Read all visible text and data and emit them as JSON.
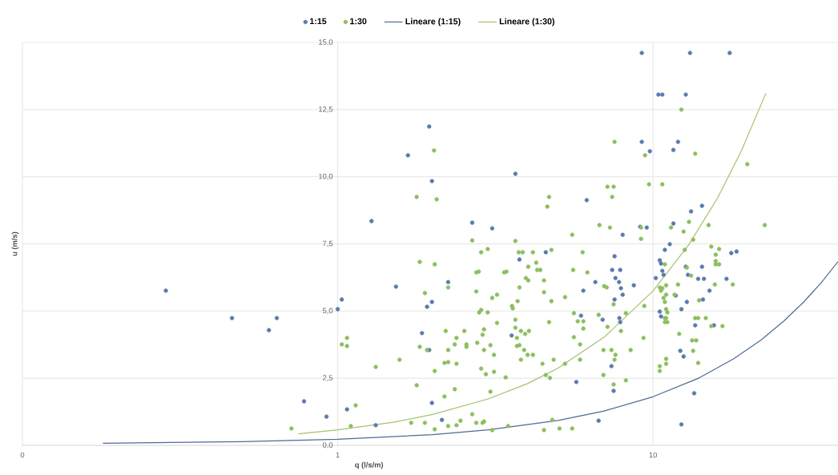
{
  "chart_data": {
    "type": "scatter",
    "xlabel": "q (l/s/m)",
    "ylabel": "u (m/s)",
    "log": "x",
    "grid": true,
    "legend": "top",
    "xlim": [
      0.1,
      38.6
    ],
    "xticks": [
      {
        "value": 0.1,
        "label": "0"
      },
      1,
      10
    ],
    "ylim": [
      0,
      15
    ],
    "yticks": [
      {
        "value": 0,
        "label": "0,0"
      },
      {
        "value": 2.5,
        "label": "2,5"
      },
      {
        "value": 5,
        "label": "5,0"
      },
      {
        "value": 7.5,
        "label": "7,5"
      },
      {
        "value": 10,
        "label": "10,0"
      },
      {
        "value": 12.5,
        "label": "12,5"
      },
      {
        "value": 15,
        "label": "15,0"
      }
    ],
    "series": [
      {
        "name": "1:15",
        "marker": "circle",
        "color": "#5a7bb0",
        "x": [
          0.285,
          0.462,
          0.605,
          0.641,
          0.782,
          0.921,
          1.0,
          1.03,
          1.07,
          1.28,
          1.32,
          1.53,
          1.67,
          1.95,
          1.99,
          1.92,
          1.99,
          1.85,
          1.95,
          1.99,
          2.24,
          2.14,
          2.67,
          3.09,
          3.56,
          3.66,
          3.77,
          4.57,
          6.16,
          6.01,
          5.71,
          5.91,
          6.56,
          6.72,
          6.92,
          7.55,
          7.42,
          7.87,
          7.6,
          7.8,
          7.91,
          8.01,
          7.55,
          7.82,
          7.87,
          8.01,
          8.69,
          7.38,
          7.5,
          9.21,
          9.77,
          9.1,
          9.55,
          10.6,
          10.2,
          10.6,
          10.9,
          11.3,
          10.8,
          9.21,
          13.1,
          17.5,
          10.4,
          10.7,
          12.7,
          11.6,
          12.0,
          14.3,
          13.2,
          11.6,
          10.5,
          10.7,
          12.7,
          12.9,
          14.3,
          13.9,
          14.5,
          17.1,
          17.7,
          18.4,
          15.1,
          14.4,
          12.8,
          11.8,
          12.3,
          10.5,
          13.6,
          15.6,
          12.2,
          12.5,
          13.5,
          12.3
        ],
        "values": [
          5.76,
          4.74,
          4.29,
          4.74,
          1.64,
          1.07,
          5.07,
          5.43,
          1.34,
          8.35,
          0.75,
          5.91,
          10.8,
          11.87,
          9.84,
          5.16,
          5.34,
          4.18,
          3.55,
          1.58,
          6.08,
          0.95,
          8.29,
          8.08,
          4.09,
          10.11,
          6.92,
          7.19,
          9.13,
          5.76,
          2.36,
          4.83,
          6.08,
          0.92,
          4.68,
          7.04,
          6.53,
          6.53,
          6.23,
          6.08,
          5.85,
          5.61,
          5.43,
          4.74,
          4.59,
          7.84,
          5.96,
          2.95,
          2.03,
          11.3,
          10.95,
          8.14,
          8.11,
          4.8,
          6.23,
          6.77,
          7.28,
          7.49,
          6.35,
          14.61,
          14.61,
          14.61,
          13.06,
          13.06,
          13.06,
          11.0,
          11.3,
          8.92,
          8.71,
          8.26,
          6.89,
          6.5,
          6.65,
          6.35,
          6.65,
          6.2,
          6.2,
          6.2,
          7.16,
          7.22,
          5.76,
          5.43,
          5.34,
          5.58,
          5.07,
          4.98,
          4.47,
          4.47,
          3.52,
          3.31,
          1.94,
          0.78
        ]
      },
      {
        "name": "1:30",
        "marker": "circle",
        "color": "#8cbf5f",
        "x": [
          0.713,
          1.03,
          1.07,
          1.07,
          1.1,
          1.14,
          1.32,
          1.57,
          1.71,
          1.78,
          1.78,
          1.82,
          1.82,
          1.89,
          1.89,
          1.92,
          2.02,
          2.03,
          2.03,
          2.03,
          2.06,
          2.2,
          2.24,
          2.24,
          2.18,
          2.18,
          2.24,
          2.24,
          2.35,
          2.38,
          2.38,
          2.35,
          2.38,
          2.45,
          2.52,
          2.56,
          2.56,
          2.67,
          2.67,
          2.75,
          2.75,
          2.8,
          2.75,
          2.77,
          2.81,
          2.85,
          2.85,
          2.85,
          2.88,
          2.91,
          2.91,
          2.95,
          2.88,
          2.91,
          2.99,
          2.99,
          3.05,
          3.05,
          3.09,
          3.13,
          3.13,
          3.09,
          3.2,
          3.2,
          3.37,
          3.43,
          3.41,
          3.47,
          3.57,
          3.59,
          3.66,
          3.66,
          3.66,
          3.7,
          3.72,
          3.77,
          3.75,
          3.86,
          3.7,
          3.77,
          3.81,
          3.81,
          3.9,
          3.93,
          3.95,
          4.02,
          4.0,
          4.02,
          4.04,
          4.16,
          4.16,
          4.26,
          4.29,
          4.39,
          4.46,
          4.51,
          4.51,
          4.51,
          4.57,
          4.71,
          4.62,
          4.68,
          4.68,
          4.76,
          4.76,
          4.79,
          4.84,
          5.05,
          5.26,
          5.26,
          5.54,
          5.54,
          5.58,
          5.61,
          5.61,
          5.77,
          6.01,
          5.87,
          5.87,
          5.98,
          6.01,
          6.19,
          6.72,
          6.76,
          6.96,
          6.96,
          7.0,
          7.13,
          7.17,
          7.17,
          7.3,
          7.42,
          7.5,
          7.5,
          7.38,
          7.6,
          7.55,
          7.5,
          7.55,
          7.91,
          8.2,
          8.2,
          8.49,
          9.16,
          9.16,
          9.33,
          9.38,
          9.43,
          9.71,
          10.7,
          10.5,
          10.6,
          10.7,
          10.9,
          11.0,
          10.9,
          10.9,
          11.1,
          11.1,
          11.4,
          12.3,
          13.6,
          19.9,
          22.6,
          13.0,
          12.5,
          15.0,
          13.4,
          12.6,
          15.3,
          16.2,
          15.8,
          15.8,
          15.8,
          16.2,
          12.8,
          13.2,
          11.0,
          10.5,
          12.0,
          15.7,
          17.9,
          10.8,
          11.0,
          11.7,
          14.0,
          11.0,
          10.9,
          11.0,
          13.6,
          13.9,
          14.7,
          15.3,
          16.6,
          12.1,
          13.3,
          13.7,
          13.4,
          13.9,
          11.0,
          10.5
        ],
        "values": [
          0.63,
          3.76,
          4.0,
          3.7,
          0.72,
          1.49,
          2.92,
          3.19,
          0.84,
          9.25,
          2.24,
          6.83,
          3.67,
          5.67,
          0.84,
          3.55,
          10.98,
          6.74,
          2.77,
          0.6,
          9.16,
          4.26,
          5.88,
          3.55,
          1.82,
          3.07,
          3.1,
          0.72,
          3.76,
          4.0,
          3.04,
          2.09,
          0.75,
          0.92,
          4.26,
          3.76,
          3.67,
          1.16,
          7.63,
          0.84,
          6.44,
          6.47,
          5.73,
          3.82,
          4.95,
          5.04,
          7.19,
          2.86,
          4.12,
          4.32,
          3.55,
          2.65,
          0.84,
          0.89,
          4.95,
          7.31,
          3.73,
          2.0,
          0.57,
          3.37,
          2.74,
          5.49,
          5.61,
          4.56,
          6.44,
          6.47,
          2.53,
          0.72,
          5.19,
          5.1,
          7.61,
          4.68,
          4.38,
          4.0,
          5.37,
          5.88,
          7.19,
          7.19,
          3.7,
          3.73,
          4.26,
          3.19,
          3.55,
          4.15,
          6.23,
          6.14,
          3.37,
          6.65,
          4.26,
          7.19,
          3.37,
          6.8,
          6.53,
          6.53,
          3.04,
          6.14,
          5.7,
          0.57,
          2.62,
          2.51,
          8.89,
          9.25,
          4.59,
          7.28,
          5.37,
          0.95,
          3.19,
          0.63,
          5.52,
          3.04,
          7.84,
          0.63,
          6.53,
          4.92,
          4.03,
          4.62,
          4.62,
          3.76,
          3.19,
          7.19,
          4.35,
          6.44,
          4.86,
          8.2,
          3.55,
          2.62,
          5.93,
          5.88,
          9.63,
          4.41,
          8.11,
          9.25,
          9.63,
          5.25,
          3.55,
          3.37,
          3.19,
          2.27,
          11.3,
          4.26,
          4.92,
          2.42,
          3.55,
          7.69,
          8.11,
          4.0,
          5.19,
          10.8,
          9.72,
          9.72,
          2.77,
          5.76,
          5.85,
          5.34,
          3.04,
          6.74,
          4.59,
          4.59,
          4.95,
          8.11,
          12.5,
          10.86,
          10.47,
          8.2,
          8.32,
          7.96,
          8.2,
          7.66,
          7.28,
          7.4,
          7.31,
          7.1,
          6.86,
          6.74,
          6.74,
          6.62,
          6.32,
          5.96,
          5.88,
          5.99,
          5.99,
          5.99,
          5.49,
          5.61,
          5.61,
          5.4,
          5.07,
          4.74,
          4.74,
          4.74,
          4.74,
          4.74,
          4.44,
          4.44,
          4.15,
          3.91,
          3.91,
          3.52,
          3.07,
          3.22,
          2.95
        ]
      },
      {
        "name": "Lineare (1:15)",
        "type": "line",
        "marker": "none",
        "color": "#4e6a96",
        "x": [
          0.18,
          0.5,
          1,
          2,
          3,
          5,
          7,
          10,
          14,
          18,
          22,
          26,
          30,
          34,
          38.6
        ],
        "values": [
          0.08,
          0.14,
          0.23,
          0.4,
          0.58,
          0.93,
          1.28,
          1.81,
          2.51,
          3.22,
          3.92,
          4.63,
          5.33,
          6.03,
          6.84
        ]
      },
      {
        "name": "Lineare (1:30)",
        "type": "line",
        "marker": "none",
        "color": "#a5c26b",
        "x": [
          0.75,
          1,
          1.5,
          2,
          3,
          4,
          5,
          7,
          10,
          13,
          16,
          19,
          22.8
        ],
        "values": [
          0.43,
          0.58,
          0.86,
          1.15,
          1.73,
          2.3,
          2.88,
          4.03,
          5.75,
          7.48,
          9.2,
          10.93,
          13.11
        ]
      }
    ]
  }
}
